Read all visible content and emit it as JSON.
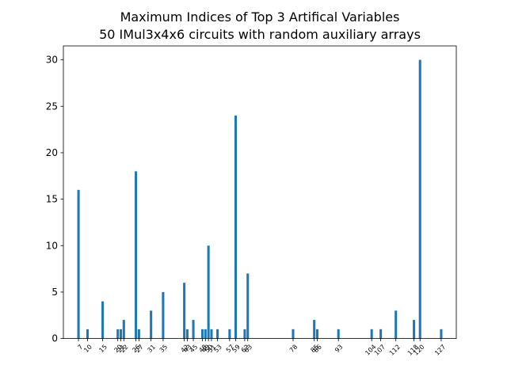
{
  "chart_data": {
    "type": "bar",
    "title": "Maximum Indices of Top 3 Artifical Variables",
    "subtitle": "50 IMul3x4x6 circuits with random auxiliary arrays",
    "xlabel": "",
    "ylabel": "",
    "xlim": [
      2,
      132
    ],
    "ylim": [
      0,
      31.5
    ],
    "yticks": [
      0,
      5,
      10,
      15,
      20,
      25,
      30
    ],
    "grid": false,
    "legend": "none",
    "bar_color": "#1f77b4",
    "x": [
      7,
      10,
      15,
      20,
      21,
      22,
      26,
      27,
      31,
      35,
      42,
      43,
      45,
      48,
      49,
      50,
      51,
      53,
      57,
      59,
      62,
      63,
      78,
      85,
      86,
      93,
      104,
      107,
      112,
      118,
      120,
      127
    ],
    "values": [
      16,
      1,
      4,
      1,
      1,
      2,
      18,
      1,
      3,
      5,
      6,
      1,
      2,
      1,
      1,
      10,
      1,
      1,
      1,
      24,
      1,
      7,
      1,
      2,
      1,
      1,
      1,
      1,
      3,
      2,
      30,
      1
    ]
  }
}
